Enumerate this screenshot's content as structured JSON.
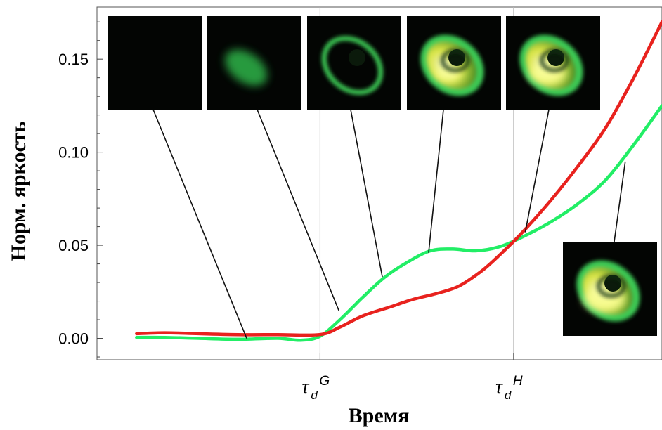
{
  "chart_data": {
    "type": "line",
    "title": "",
    "xlabel": "Время",
    "ylabel": "Норм. яркость",
    "ylim": [
      -0.0115,
      0.178
    ],
    "xlim": [
      0,
      1
    ],
    "y_ticks": [
      "0.00",
      "0.05",
      "0.10",
      "0.15"
    ],
    "y_tick_values": [
      0,
      0.05,
      0.1,
      0.15
    ],
    "x_ticks": [
      {
        "base": "τ",
        "sub": "d",
        "sup": "G",
        "value": 0.3948
      },
      {
        "base": "τ",
        "sub": "d",
        "sup": "H",
        "value": 0.7374
      }
    ],
    "grid": "vertical lines at τ_d^G and τ_d^H",
    "legend": "none",
    "series": [
      {
        "color": "#e8221e",
        "x": [
          0.07,
          0.12,
          0.18,
          0.25,
          0.32,
          0.394,
          0.43,
          0.47,
          0.52,
          0.56,
          0.6,
          0.64,
          0.68,
          0.71,
          0.75,
          0.8,
          0.85,
          0.9,
          0.95,
          1.0
        ],
        "y": [
          0.0025,
          0.003,
          0.0025,
          0.002,
          0.002,
          0.002,
          0.006,
          0.012,
          0.017,
          0.021,
          0.024,
          0.028,
          0.036,
          0.044,
          0.056,
          0.073,
          0.092,
          0.113,
          0.14,
          0.17
        ]
      },
      {
        "color": "#22ee66",
        "x": [
          0.07,
          0.12,
          0.18,
          0.25,
          0.32,
          0.36,
          0.394,
          0.43,
          0.47,
          0.51,
          0.55,
          0.59,
          0.63,
          0.67,
          0.71,
          0.75,
          0.8,
          0.85,
          0.9,
          0.95,
          1.0
        ],
        "y": [
          0.0005,
          0.0005,
          0.0,
          -0.0005,
          0.0,
          -0.001,
          0.001,
          0.01,
          0.022,
          0.033,
          0.041,
          0.047,
          0.048,
          0.047,
          0.049,
          0.054,
          0.062,
          0.072,
          0.085,
          0.104,
          0.125
        ]
      }
    ],
    "annotations": [
      {
        "name": "frame-1",
        "x": 0.265,
        "y": 0.0,
        "glow": 0.0,
        "yellow": 0.0,
        "inner": 0.0
      },
      {
        "name": "frame-2",
        "x": 0.428,
        "y": 0.015,
        "glow": 0.45,
        "yellow": 0.0,
        "inner": 0.0
      },
      {
        "name": "frame-3",
        "x": 0.505,
        "y": 0.033,
        "glow": 0.8,
        "yellow": 0.0,
        "inner": 0.4
      },
      {
        "name": "frame-4",
        "x": 0.587,
        "y": 0.046,
        "glow": 0.95,
        "yellow": 0.5,
        "inner": 0.6
      },
      {
        "name": "frame-5",
        "x": 0.758,
        "y": 0.057,
        "glow": 1.0,
        "yellow": 0.75,
        "inner": 0.6
      },
      {
        "name": "frame-6",
        "x": 0.935,
        "y": 0.095,
        "glow": 1.0,
        "yellow": 0.9,
        "inner": 0.6
      }
    ]
  }
}
